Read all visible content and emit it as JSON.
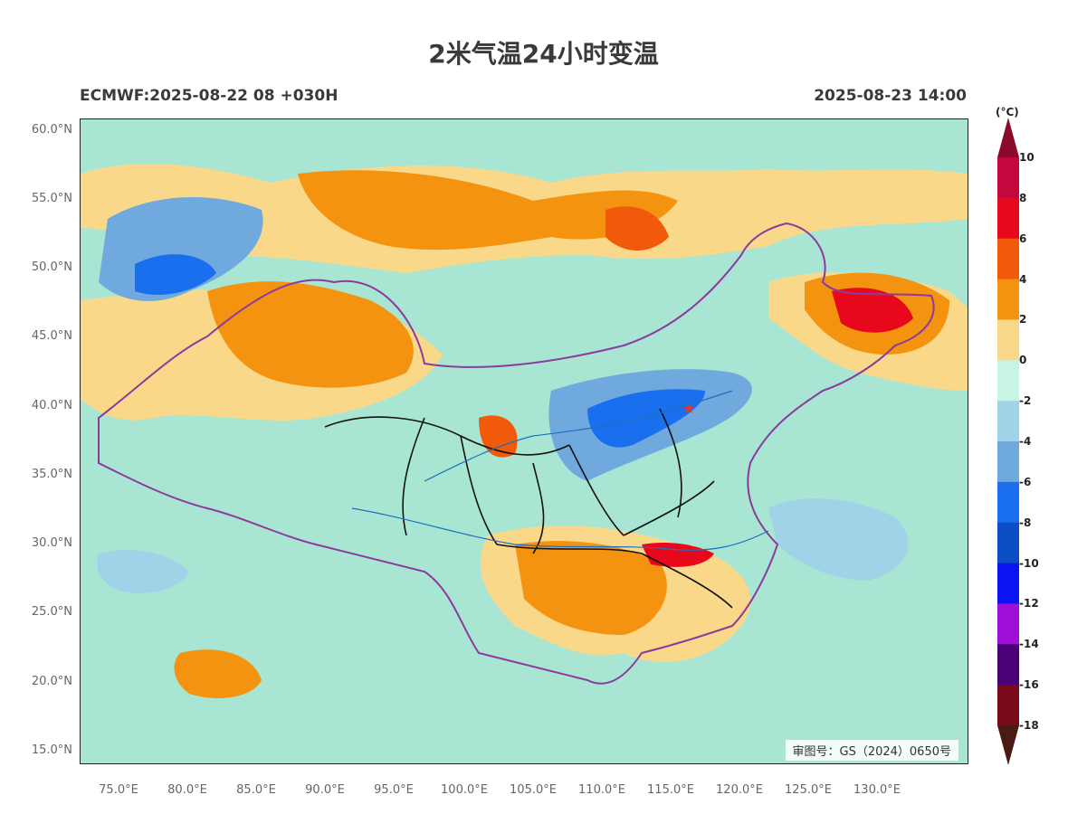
{
  "title": "2米气温24小时变温",
  "subtitle_left": "ECMWF:2025-08-22 08 +030H",
  "subtitle_right": "2025-08-23 14:00",
  "approval_text": "审图号：GS（2024）0650号",
  "lat_labels": [
    "60.0°N",
    "55.0°N",
    "50.0°N",
    "45.0°N",
    "40.0°N",
    "35.0°N",
    "30.0°N",
    "25.0°N",
    "20.0°N",
    "15.0°N"
  ],
  "lon_labels": [
    "75.0°E",
    "80.0°E",
    "85.0°E",
    "90.0°E",
    "95.0°E",
    "100.0°E",
    "105.0°E",
    "110.0°E",
    "115.0°E",
    "120.0°E",
    "125.0°E",
    "130.0°E"
  ],
  "colorbar": {
    "unit": "(°C)",
    "labels": [
      "10",
      "8",
      "6",
      "4",
      "2",
      "0",
      "-2",
      "-4",
      "-6",
      "-8",
      "-10",
      "-12",
      "-14",
      "-16",
      "-18"
    ],
    "colors": [
      "#c4073f",
      "#e8081c",
      "#f05a0a",
      "#f39310",
      "#fad88a",
      "#c8f4e4",
      "#a0d2e8",
      "#6fa9de",
      "#1a6fef",
      "#0b4dc2",
      "#0a14f0",
      "#a00fd8",
      "#4c0077",
      "#7a0a1a"
    ],
    "top_color": "#8a0a2a",
    "bottom_color": "#4a1a14"
  },
  "map_layers": {
    "background_color": "#a8e6d3",
    "border_color": "#8b3a9e",
    "province_color": "#111111",
    "river_color": "#1f6fbf"
  }
}
